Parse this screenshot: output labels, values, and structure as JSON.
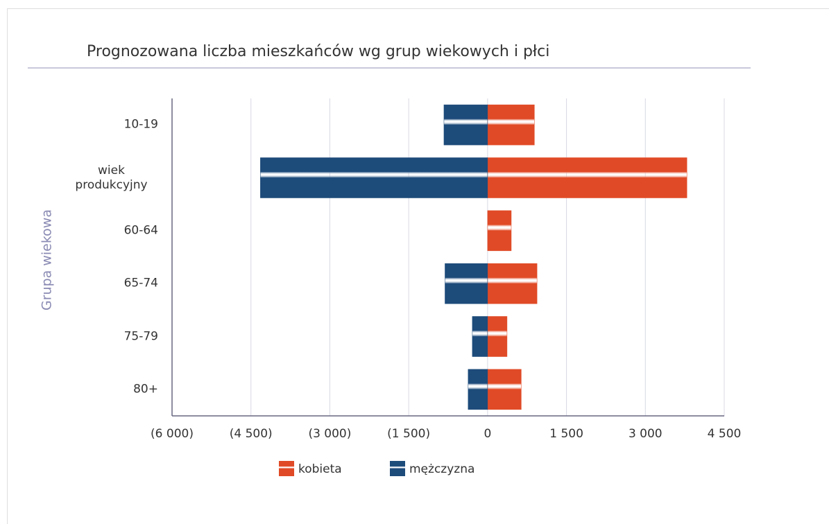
{
  "chart_data": {
    "type": "bar",
    "orientation": "horizontal",
    "title": "Prognozowana liczba mieszkańców wg grup wiekowych i płci",
    "y_label": "Grupa wiekowa",
    "categories": [
      "10-19",
      "wiek produkcyjny",
      "60-64",
      "65-74",
      "75-79",
      "80+"
    ],
    "series": [
      {
        "name": "kobieta",
        "color": "#e04a26",
        "values": [
          890,
          3790,
          450,
          940,
          370,
          640
        ]
      },
      {
        "name": "mężczyzna",
        "color": "#1d4b7a",
        "values": [
          -830,
          -4320,
          0,
          -810,
          -290,
          -370
        ]
      }
    ],
    "xlim": [
      -6000,
      4500
    ],
    "xticks": [
      {
        "value": -6000,
        "label": "(6 000)"
      },
      {
        "value": -4500,
        "label": "(4 500)"
      },
      {
        "value": -3000,
        "label": "(3 000)"
      },
      {
        "value": -1500,
        "label": "(1 500)"
      },
      0,
      {
        "value": 1500,
        "label": "1 500"
      },
      {
        "value": 3000,
        "label": "3 000"
      },
      {
        "value": 4500,
        "label": "4 500"
      }
    ],
    "grid": true,
    "legend": "bottom"
  }
}
